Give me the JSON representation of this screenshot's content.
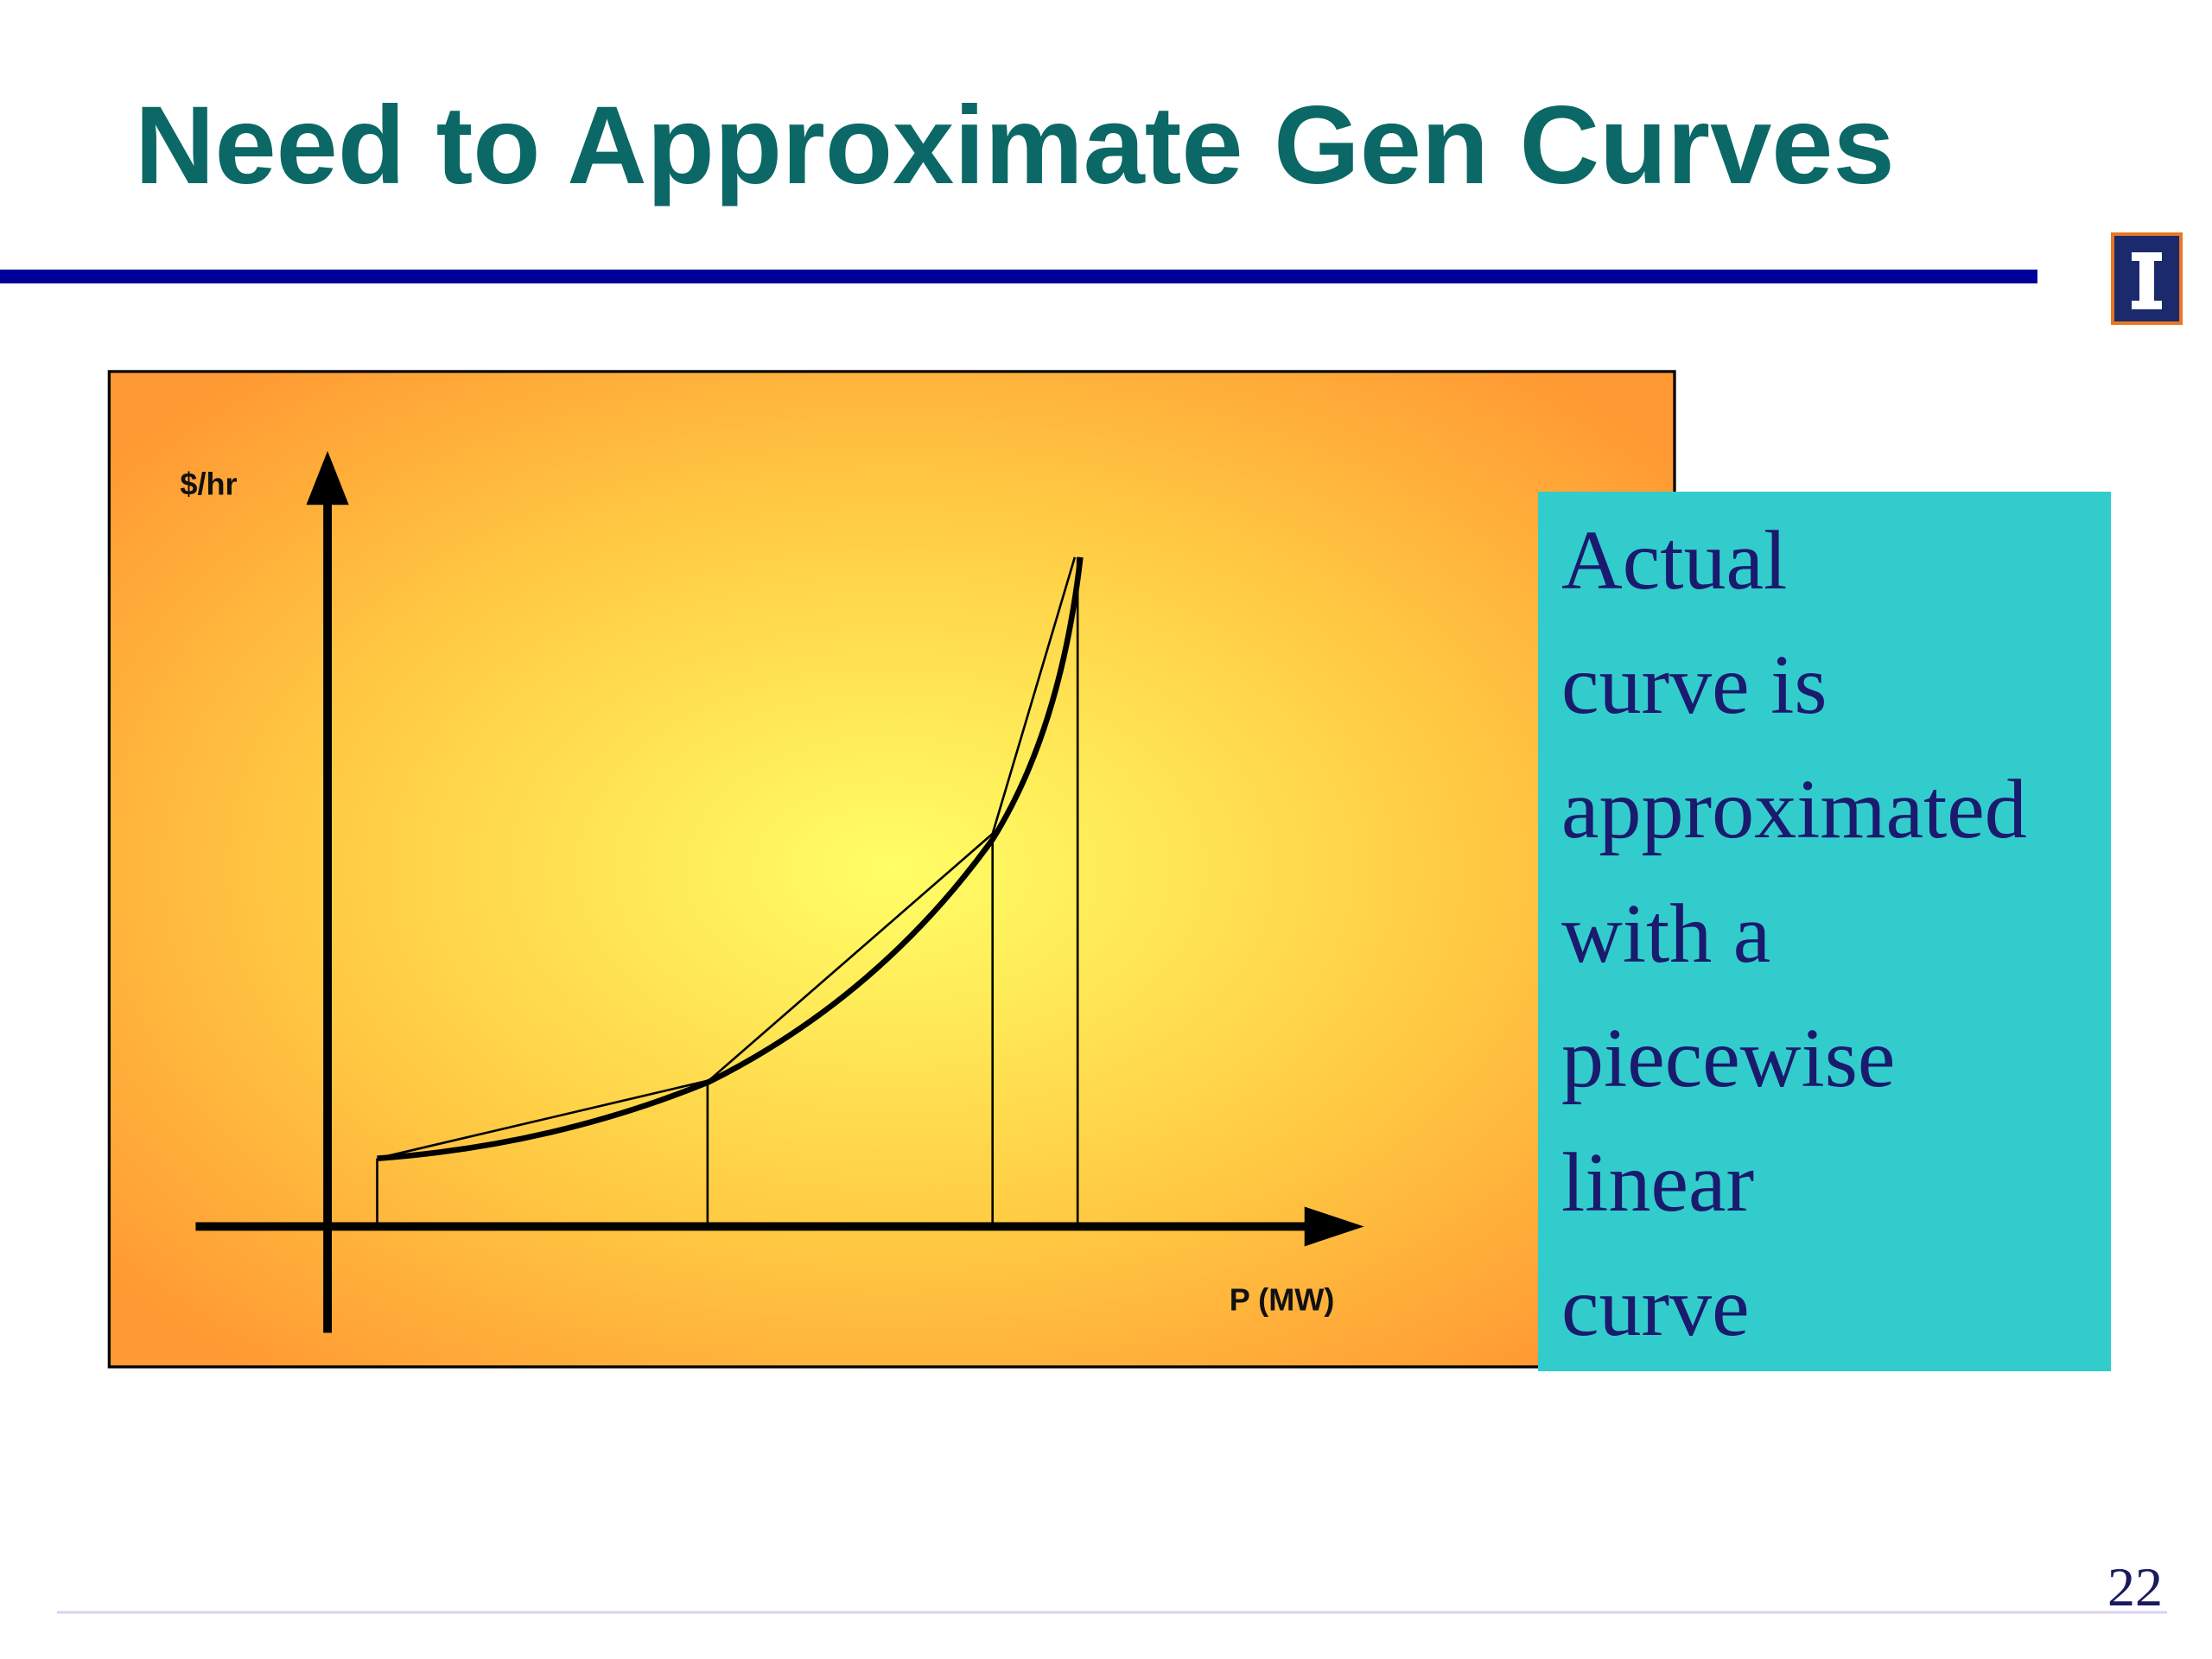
{
  "header": {
    "title": "Need to Approximate Gen Curves"
  },
  "diagram": {
    "y_axis_label": "$/hr",
    "x_axis_label": "P (MW)"
  },
  "callout": {
    "lines": [
      "Actual",
      "curve is",
      "approximated",
      "with a",
      "piecewise",
      "linear",
      "curve"
    ]
  },
  "footer": {
    "page_number": "22"
  }
}
